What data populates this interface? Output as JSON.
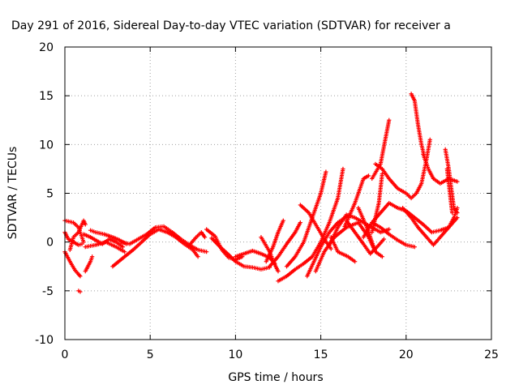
{
  "chart_data": {
    "type": "scatter",
    "title": "Day 291 of 2016, Sidereal Day-to-day VTEC variation (SDTVAR) for receiver a",
    "xlabel": "GPS time / hours",
    "ylabel": "SDTVAR / TECUs",
    "xlim": [
      0,
      25
    ],
    "ylim": [
      -10,
      20
    ],
    "xticks": [
      "0",
      "5",
      "10",
      "15",
      "20",
      "25"
    ],
    "yticks": [
      "-10",
      "-5",
      "0",
      "5",
      "10",
      "15",
      "20"
    ],
    "grid": true,
    "marker": "+",
    "series_color": "#ff0000",
    "tracks": [
      [
        [
          0.0,
          2.2
        ],
        [
          0.5,
          2.0
        ],
        [
          0.8,
          1.5
        ],
        [
          1.0,
          0.5
        ],
        [
          1.1,
          0.0
        ]
      ],
      [
        [
          0.0,
          1.0
        ],
        [
          0.2,
          0.3
        ],
        [
          0.5,
          0.0
        ],
        [
          0.8,
          -0.3
        ],
        [
          1.0,
          -0.2
        ]
      ],
      [
        [
          0.0,
          -1.0
        ],
        [
          0.3,
          -2.0
        ],
        [
          0.6,
          -2.9
        ],
        [
          0.8,
          -3.3
        ],
        [
          0.9,
          -3.5
        ]
      ],
      [
        [
          1.2,
          -3.0
        ],
        [
          1.5,
          -2.0
        ],
        [
          1.6,
          -1.5
        ]
      ],
      [
        [
          0.3,
          -0.8
        ],
        [
          0.5,
          0.5
        ],
        [
          0.8,
          1.0
        ],
        [
          1.1,
          2.2
        ],
        [
          1.2,
          1.8
        ]
      ],
      [
        [
          0.8,
          -5.0
        ],
        [
          0.9,
          -5.1
        ]
      ],
      [
        [
          1.1,
          0.8
        ],
        [
          1.5,
          0.5
        ],
        [
          1.8,
          0.2
        ],
        [
          2.2,
          -0.2
        ],
        [
          2.6,
          0.3
        ],
        [
          3.0,
          0.0
        ],
        [
          3.4,
          -0.5
        ]
      ],
      [
        [
          1.5,
          1.2
        ],
        [
          1.8,
          1.0
        ],
        [
          2.3,
          0.8
        ],
        [
          2.8,
          0.5
        ],
        [
          3.2,
          0.2
        ],
        [
          3.6,
          -0.2
        ]
      ],
      [
        [
          1.2,
          -0.5
        ],
        [
          1.8,
          -0.3
        ],
        [
          2.4,
          0.0
        ],
        [
          3.0,
          -0.5
        ],
        [
          3.5,
          -1.0
        ]
      ],
      [
        [
          2.8,
          -2.5
        ],
        [
          3.5,
          -1.5
        ],
        [
          4.0,
          -0.8
        ],
        [
          4.5,
          0.0
        ],
        [
          5.0,
          0.8
        ],
        [
          5.5,
          1.3
        ],
        [
          6.0,
          1.0
        ],
        [
          6.5,
          0.5
        ],
        [
          7.0,
          -0.2
        ],
        [
          7.5,
          -0.8
        ],
        [
          7.8,
          -1.5
        ]
      ],
      [
        [
          3.3,
          0.0
        ],
        [
          3.8,
          -0.2
        ],
        [
          4.3,
          0.3
        ],
        [
          4.8,
          0.8
        ],
        [
          5.3,
          1.5
        ],
        [
          5.8,
          1.6
        ],
        [
          6.3,
          1.0
        ],
        [
          6.8,
          0.3
        ],
        [
          7.3,
          -0.3
        ],
        [
          7.8,
          -0.8
        ],
        [
          8.3,
          -1.0
        ]
      ],
      [
        [
          7.3,
          -0.3
        ],
        [
          7.7,
          0.5
        ],
        [
          8.0,
          1.0
        ],
        [
          8.2,
          0.5
        ]
      ],
      [
        [
          8.3,
          1.3
        ],
        [
          8.8,
          0.6
        ],
        [
          9.2,
          -0.8
        ],
        [
          9.6,
          -1.6
        ],
        [
          10.0,
          -1.8
        ],
        [
          10.4,
          -1.5
        ]
      ],
      [
        [
          8.6,
          0.4
        ],
        [
          9.1,
          -0.5
        ],
        [
          9.6,
          -1.3
        ],
        [
          10.0,
          -2.0
        ],
        [
          10.5,
          -2.5
        ],
        [
          11.0,
          -2.6
        ],
        [
          11.5,
          -2.8
        ],
        [
          12.0,
          -2.6
        ]
      ],
      [
        [
          10.0,
          -1.5
        ],
        [
          10.5,
          -1.2
        ],
        [
          11.0,
          -0.9
        ],
        [
          11.5,
          -1.2
        ],
        [
          12.0,
          -1.6
        ],
        [
          12.3,
          -2.2
        ]
      ],
      [
        [
          11.5,
          0.5
        ],
        [
          12.0,
          -1.0
        ],
        [
          12.3,
          -2.3
        ],
        [
          12.5,
          -3.0
        ]
      ],
      [
        [
          12.5,
          -4.0
        ],
        [
          13.0,
          -3.5
        ],
        [
          13.5,
          -2.8
        ],
        [
          14.0,
          -2.2
        ],
        [
          14.5,
          -1.5
        ],
        [
          15.0,
          0.0
        ],
        [
          15.5,
          2.0
        ],
        [
          16.0,
          4.5
        ],
        [
          16.3,
          7.5
        ]
      ],
      [
        [
          11.8,
          -2.0
        ],
        [
          12.2,
          -0.5
        ],
        [
          12.5,
          1.0
        ],
        [
          12.8,
          2.2
        ]
      ],
      [
        [
          12.0,
          -2.5
        ],
        [
          12.5,
          -1.5
        ],
        [
          13.0,
          -0.2
        ],
        [
          13.5,
          1.0
        ],
        [
          13.8,
          2.0
        ]
      ],
      [
        [
          13.0,
          -2.5
        ],
        [
          13.5,
          -1.5
        ],
        [
          14.0,
          0.0
        ],
        [
          14.5,
          2.5
        ],
        [
          15.0,
          5.0
        ],
        [
          15.3,
          7.2
        ]
      ],
      [
        [
          14.2,
          -3.5
        ],
        [
          14.6,
          -2.0
        ],
        [
          15.0,
          -0.5
        ],
        [
          15.5,
          1.0
        ],
        [
          16.0,
          2.0
        ],
        [
          16.5,
          2.6
        ]
      ],
      [
        [
          14.7,
          -3.0
        ],
        [
          15.2,
          -1.0
        ],
        [
          15.8,
          0.5
        ],
        [
          16.5,
          1.5
        ],
        [
          17.2,
          2.0
        ],
        [
          17.8,
          0.5
        ],
        [
          18.2,
          -1.0
        ],
        [
          18.6,
          -1.5
        ]
      ],
      [
        [
          13.8,
          3.8
        ],
        [
          14.3,
          3.0
        ],
        [
          14.8,
          1.5
        ],
        [
          15.2,
          0.3
        ],
        [
          15.6,
          -0.7
        ]
      ],
      [
        [
          15.6,
          0.5
        ],
        [
          16.0,
          -1.0
        ],
        [
          16.6,
          -1.5
        ],
        [
          17.0,
          -2.0
        ]
      ],
      [
        [
          15.5,
          -0.3
        ],
        [
          16.0,
          1.5
        ],
        [
          16.5,
          2.8
        ],
        [
          17.0,
          2.5
        ],
        [
          17.5,
          2.0
        ],
        [
          18.0,
          1.5
        ],
        [
          18.5,
          1.0
        ],
        [
          19.0,
          1.3
        ]
      ],
      [
        [
          16.5,
          2.2
        ],
        [
          17.0,
          1.0
        ],
        [
          17.5,
          -0.2
        ],
        [
          17.9,
          -1.2
        ],
        [
          18.3,
          -0.5
        ],
        [
          18.7,
          0.3
        ]
      ],
      [
        [
          16.4,
          1.6
        ],
        [
          17.0,
          4.0
        ],
        [
          17.5,
          6.5
        ],
        [
          17.8,
          6.8
        ]
      ],
      [
        [
          17.2,
          3.5
        ],
        [
          17.7,
          1.5
        ],
        [
          18.0,
          0.0
        ],
        [
          18.2,
          -1.0
        ]
      ],
      [
        [
          18.0,
          1.0
        ],
        [
          18.4,
          4.0
        ],
        [
          18.6,
          7.0
        ]
      ],
      [
        [
          17.5,
          0.5
        ],
        [
          18.0,
          2.0
        ],
        [
          18.5,
          3.0
        ],
        [
          19.0,
          4.0
        ],
        [
          19.5,
          3.5
        ],
        [
          20.0,
          3.2
        ],
        [
          20.5,
          2.5
        ],
        [
          21.0,
          1.8
        ],
        [
          21.5,
          1.0
        ],
        [
          22.0,
          1.2
        ],
        [
          22.5,
          1.5
        ],
        [
          22.8,
          2.5
        ],
        [
          23.0,
          3.5
        ]
      ],
      [
        [
          18.0,
          2.0
        ],
        [
          18.5,
          1.5
        ],
        [
          19.0,
          0.8
        ],
        [
          19.5,
          0.2
        ],
        [
          20.0,
          -0.3
        ],
        [
          20.5,
          -0.5
        ]
      ],
      [
        [
          18.0,
          6.5
        ],
        [
          18.5,
          8.0
        ],
        [
          19.0,
          12.5
        ]
      ],
      [
        [
          18.2,
          8.0
        ],
        [
          18.6,
          7.5
        ],
        [
          19.0,
          6.5
        ],
        [
          19.5,
          5.5
        ],
        [
          20.0,
          5.0
        ],
        [
          20.3,
          4.5
        ],
        [
          20.6,
          5.0
        ],
        [
          20.9,
          6.0
        ],
        [
          21.2,
          8.5
        ],
        [
          21.4,
          10.5
        ]
      ],
      [
        [
          20.3,
          15.2
        ],
        [
          20.5,
          14.5
        ],
        [
          20.7,
          12.0
        ],
        [
          20.9,
          10.0
        ],
        [
          21.1,
          8.5
        ],
        [
          21.3,
          7.5
        ],
        [
          21.6,
          6.5
        ],
        [
          22.0,
          6.0
        ],
        [
          22.5,
          6.5
        ],
        [
          23.0,
          6.2
        ]
      ],
      [
        [
          19.8,
          3.5
        ],
        [
          20.3,
          2.5
        ],
        [
          20.7,
          1.5
        ],
        [
          21.2,
          0.5
        ],
        [
          21.6,
          -0.3
        ],
        [
          22.0,
          0.5
        ],
        [
          22.5,
          1.5
        ],
        [
          23.0,
          2.5
        ]
      ],
      [
        [
          21.0,
          9.0
        ],
        [
          21.2,
          8.0
        ]
      ],
      [
        [
          22.3,
          9.5
        ],
        [
          22.5,
          7.5
        ],
        [
          22.8,
          3.5
        ],
        [
          23.0,
          3.0
        ]
      ],
      [
        [
          22.4,
          7.5
        ],
        [
          22.7,
          3.0
        ]
      ]
    ]
  }
}
